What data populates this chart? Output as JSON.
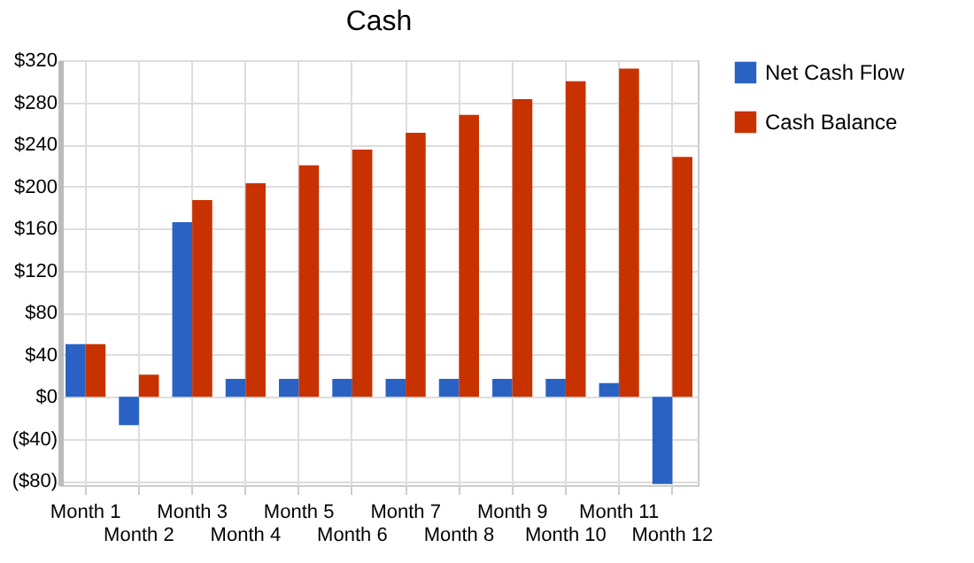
{
  "chart_data": {
    "type": "bar",
    "title": "Cash",
    "categories": [
      "Month 1",
      "Month 2",
      "Month 3",
      "Month 4",
      "Month 5",
      "Month 6",
      "Month 7",
      "Month 8",
      "Month 9",
      "Month 10",
      "Month 11",
      "Month 12"
    ],
    "series": [
      {
        "name": "Net Cash Flow",
        "color": "#2a62c4",
        "values": [
          50,
          -27,
          166,
          17,
          17,
          17,
          17,
          17,
          17,
          17,
          13,
          -83
        ]
      },
      {
        "name": "Cash Balance",
        "color": "#c83200",
        "values": [
          50,
          21,
          187,
          203,
          220,
          235,
          251,
          268,
          283,
          300,
          312,
          228
        ]
      }
    ],
    "ylim": [
      -84,
      320
    ],
    "yticks": [
      {
        "value": -80,
        "label": "($80)"
      },
      {
        "value": -40,
        "label": "($40)"
      },
      {
        "value": 0,
        "label": "$0"
      },
      {
        "value": 40,
        "label": "$40"
      },
      {
        "value": 80,
        "label": "$80"
      },
      {
        "value": 120,
        "label": "$120"
      },
      {
        "value": 160,
        "label": "$160"
      },
      {
        "value": 200,
        "label": "$200"
      },
      {
        "value": 240,
        "label": "$240"
      },
      {
        "value": 280,
        "label": "$280"
      },
      {
        "value": 320,
        "label": "$320"
      }
    ],
    "grid": true,
    "legend": "right"
  }
}
